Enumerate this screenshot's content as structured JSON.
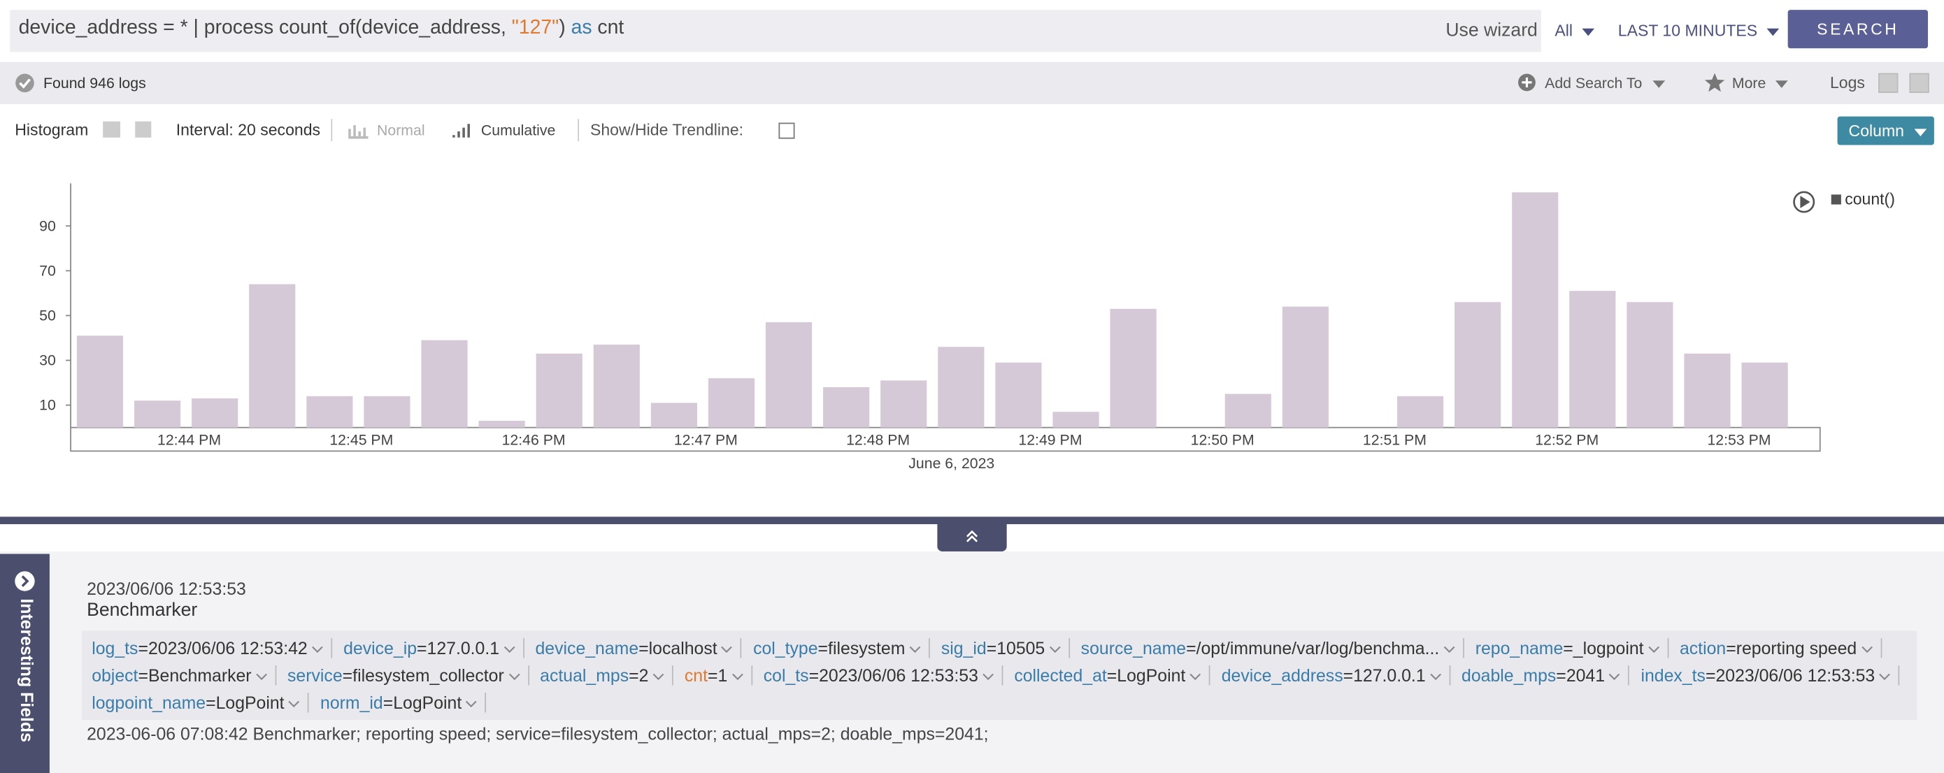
{
  "search_bar": {
    "query_parts": [
      "device_address = * | process count_of(device_address, ",
      "\"127\"",
      ") ",
      "as",
      " cnt"
    ],
    "use_wizard": "Use wizard",
    "scope": "All",
    "time_range": "LAST 10 MINUTES",
    "search_button": "SEARCH"
  },
  "status_bar": {
    "found": "Found 946 logs",
    "add_search_to": "Add Search To",
    "more": "More",
    "logs": "Logs"
  },
  "chart_toolbar": {
    "histogram": "Histogram",
    "interval": "Interval: 20 seconds",
    "normal": "Normal",
    "cumulative": "Cumulative",
    "trendline": "Show/Hide Trendline:",
    "column": "Column"
  },
  "chart_data": {
    "type": "bar",
    "categories": [
      null,
      null,
      "12:44 PM",
      null,
      null,
      "12:45 PM",
      null,
      null,
      "12:46 PM",
      null,
      null,
      "12:47 PM",
      null,
      null,
      "12:48 PM",
      null,
      null,
      "12:49 PM",
      null,
      null,
      "12:50 PM",
      null,
      null,
      "12:51 PM",
      null,
      null,
      "12:52 PM",
      null,
      null,
      "12:53 PM"
    ],
    "series": [
      {
        "name": "count()",
        "color": "#d5c8d7",
        "values": [
          41,
          12,
          13,
          64,
          14,
          14,
          39,
          3,
          33,
          37,
          11,
          22,
          47,
          18,
          21,
          36,
          29,
          7,
          53,
          0,
          15,
          54,
          0,
          14,
          56,
          105,
          61,
          56,
          33,
          29
        ]
      }
    ],
    "ylim": [
      0,
      109
    ],
    "yticks": [
      10,
      30,
      50,
      70,
      90
    ],
    "xlabel": "June 6, 2023"
  },
  "side_tab": "Interesting Fields",
  "log": {
    "timestamp": "2023/06/06 12:53:53",
    "source": "Benchmarker",
    "separator": "=",
    "fields": [
      {
        "key": "log_ts",
        "value": "2023/06/06 12:53:42"
      },
      {
        "key": "device_ip",
        "value": "127.0.0.1"
      },
      {
        "key": "device_name",
        "value": "localhost"
      },
      {
        "key": "col_type",
        "value": "filesystem"
      },
      {
        "key": "sig_id",
        "value": "10505"
      },
      {
        "key": "source_name",
        "value": "/opt/immune/var/log/benchma..."
      },
      {
        "key": "repo_name",
        "value": "_logpoint"
      },
      {
        "key": "action",
        "value": "reporting speed"
      },
      {
        "key": "object",
        "value": "Benchmarker"
      },
      {
        "key": "service",
        "value": "filesystem_collector"
      },
      {
        "key": "actual_mps",
        "value": "2"
      },
      {
        "key": "cnt",
        "value": "1"
      },
      {
        "key": "col_ts",
        "value": "2023/06/06 12:53:53"
      },
      {
        "key": "collected_at",
        "value": "LogPoint"
      },
      {
        "key": "device_address",
        "value": "127.0.0.1"
      },
      {
        "key": "doable_mps",
        "value": "2041"
      },
      {
        "key": "index_ts",
        "value": "2023/06/06 12:53:53"
      },
      {
        "key": "logpoint_name",
        "value": "LogPoint"
      },
      {
        "key": "norm_id",
        "value": "LogPoint"
      }
    ],
    "message": "2023-06-06 07:08:42 Benchmarker; reporting speed; service=filesystem_collector; actual_mps=2; doable_mps=2041;"
  }
}
